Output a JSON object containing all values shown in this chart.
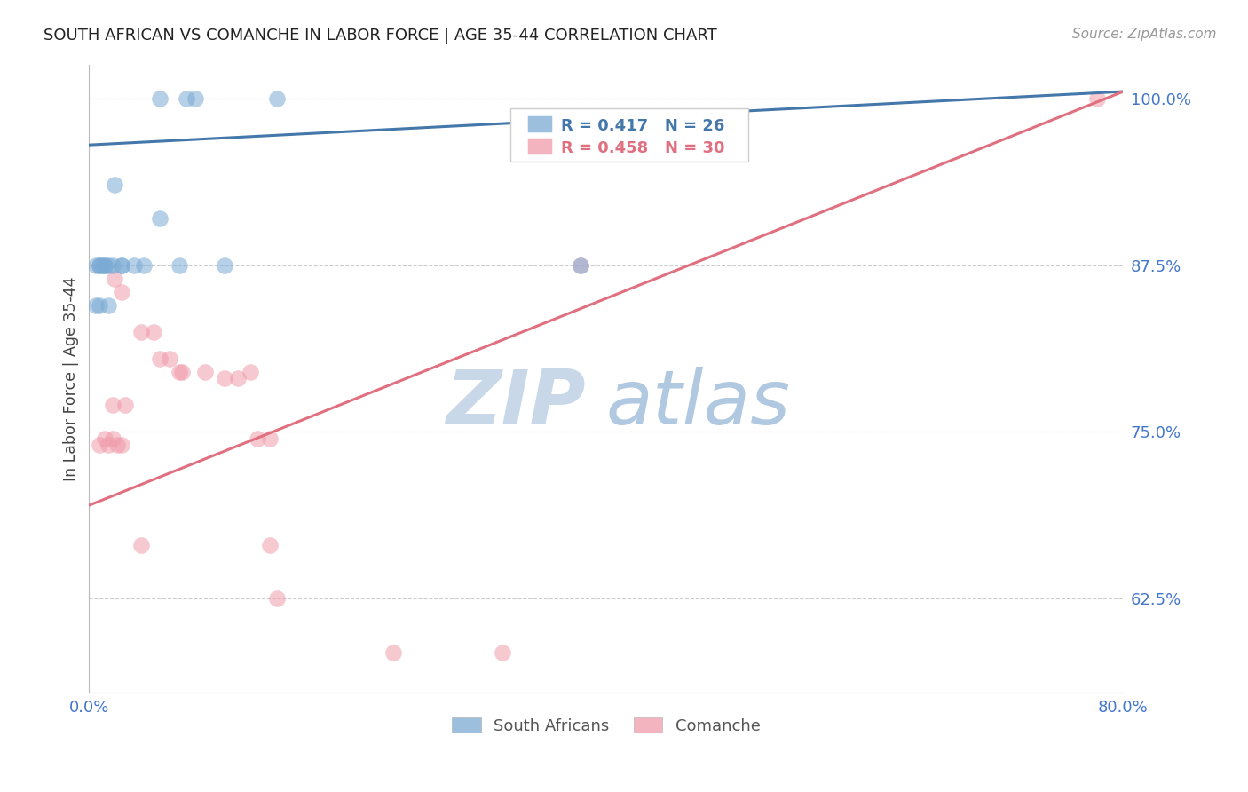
{
  "title": "SOUTH AFRICAN VS COMANCHE IN LABOR FORCE | AGE 35-44 CORRELATION CHART",
  "source_text": "Source: ZipAtlas.com",
  "ylabel": "In Labor Force | Age 35-44",
  "xlim": [
    0.0,
    0.8
  ],
  "ylim": [
    0.555,
    1.025
  ],
  "yticks": [
    0.625,
    0.75,
    0.875,
    1.0
  ],
  "ytick_labels": [
    "62.5%",
    "75.0%",
    "87.5%",
    "100.0%"
  ],
  "xticks": [
    0.0,
    0.1,
    0.2,
    0.3,
    0.4,
    0.5,
    0.6,
    0.7,
    0.8
  ],
  "xtick_labels": [
    "0.0%",
    "",
    "",
    "",
    "",
    "",
    "",
    "",
    "80.0%"
  ],
  "blue_scatter_x": [
    0.055,
    0.075,
    0.082,
    0.145,
    0.02,
    0.055,
    0.005,
    0.008,
    0.01,
    0.012,
    0.015,
    0.008,
    0.012,
    0.018,
    0.025,
    0.035,
    0.042,
    0.07,
    0.025,
    0.105,
    0.38,
    0.015,
    0.008,
    0.005
  ],
  "blue_scatter_y": [
    1.0,
    1.0,
    1.0,
    1.0,
    0.935,
    0.91,
    0.875,
    0.875,
    0.875,
    0.875,
    0.875,
    0.875,
    0.875,
    0.875,
    0.875,
    0.875,
    0.875,
    0.875,
    0.875,
    0.875,
    0.875,
    0.845,
    0.845,
    0.845
  ],
  "pink_scatter_x": [
    0.78,
    0.38,
    0.02,
    0.025,
    0.04,
    0.05,
    0.055,
    0.062,
    0.07,
    0.09,
    0.105,
    0.115,
    0.125,
    0.018,
    0.028,
    0.008,
    0.012,
    0.015,
    0.018,
    0.022,
    0.025,
    0.072,
    0.13,
    0.14,
    0.04,
    0.14,
    0.145,
    0.235,
    0.32
  ],
  "pink_scatter_y": [
    1.0,
    0.875,
    0.865,
    0.855,
    0.825,
    0.825,
    0.805,
    0.805,
    0.795,
    0.795,
    0.79,
    0.79,
    0.795,
    0.77,
    0.77,
    0.74,
    0.745,
    0.74,
    0.745,
    0.74,
    0.74,
    0.795,
    0.745,
    0.745,
    0.665,
    0.665,
    0.625,
    0.585,
    0.585
  ],
  "blue_line_x": [
    0.0,
    0.8
  ],
  "blue_line_y": [
    0.965,
    1.005
  ],
  "pink_line_x": [
    0.0,
    0.8
  ],
  "pink_line_y": [
    0.695,
    1.005
  ],
  "blue_color": "#7baad4",
  "pink_color": "#f09baa",
  "blue_line_color": "#4477aa",
  "pink_line_color": "#e07080",
  "legend_r_blue": "0.417",
  "legend_n_blue": "26",
  "legend_r_pink": "0.458",
  "legend_n_pink": "30",
  "legend_label_blue": "South Africans",
  "legend_label_pink": "Comanche",
  "title_color": "#222222",
  "axis_label_color": "#444444",
  "tick_label_color": "#4477cc",
  "grid_color": "#cccccc",
  "background_color": "#ffffff",
  "watermark_zip_color": "#c8d8e8",
  "watermark_atlas_color": "#b0c8e0"
}
